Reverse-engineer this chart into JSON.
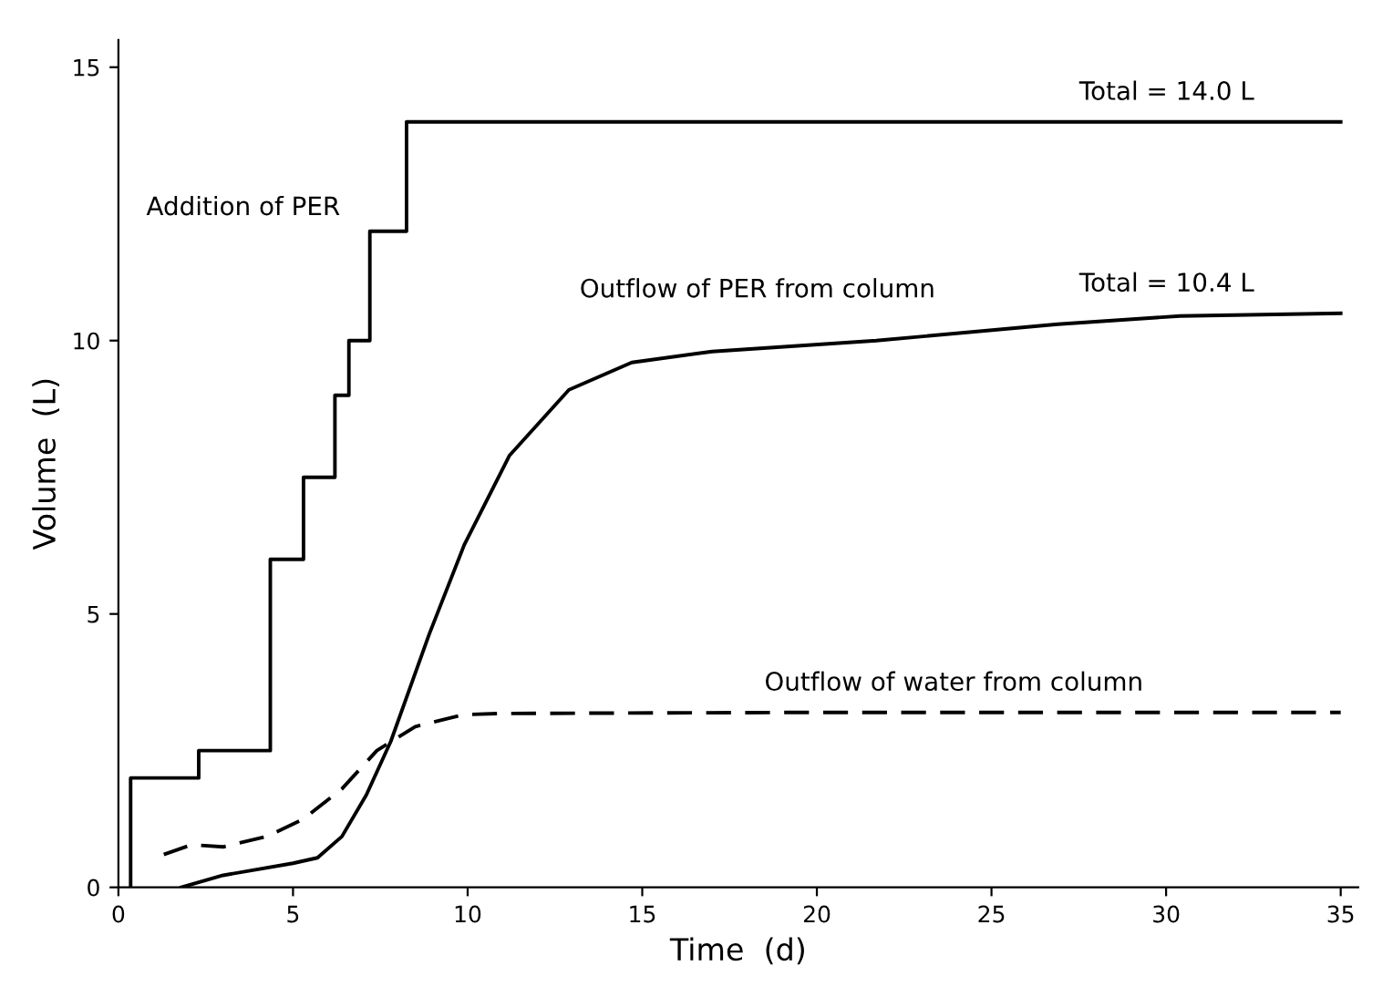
{
  "chart_data": {
    "type": "line",
    "xlabel": "Time  (d)",
    "ylabel": "Volume  (L)",
    "xlim": [
      0,
      35.5
    ],
    "ylim": [
      0,
      15.5
    ],
    "xticks": [
      0,
      5,
      10,
      15,
      20,
      25,
      30,
      35
    ],
    "yticks": [
      0,
      5,
      10,
      15
    ],
    "grid": false,
    "legend": false,
    "marker": "none",
    "series": [
      {
        "type": "step",
        "color": "#000000",
        "line_style": "solid",
        "x": [
          0.35,
          0.35,
          2.3,
          4.35,
          5.3,
          6.2,
          6.6,
          7.2,
          8.25,
          35
        ],
        "values": [
          0,
          2,
          2.5,
          6,
          7.5,
          9,
          10,
          12,
          14,
          14
        ]
      },
      {
        "color": "#000000",
        "line_style": "solid",
        "x": [
          1.8,
          3.0,
          5.0,
          5.7,
          6.4,
          7.1,
          7.8,
          8.9,
          9.9,
          11.2,
          12.9,
          14.7,
          17.0,
          21.7,
          26.9,
          30.4,
          35
        ],
        "values": [
          0,
          0.22,
          0.44,
          0.54,
          0.93,
          1.69,
          2.67,
          4.63,
          6.26,
          7.9,
          9.1,
          9.6,
          9.8,
          10.0,
          10.3,
          10.45,
          10.5
        ]
      },
      {
        "color": "#000000",
        "line_style": "dashed",
        "x": [
          1.3,
          2.1,
          3.0,
          4.25,
          5.3,
          6.4,
          7.4,
          8.5,
          9.9,
          11,
          20,
          35
        ],
        "values": [
          0.6,
          0.78,
          0.74,
          0.93,
          1.25,
          1.8,
          2.5,
          2.94,
          3.16,
          3.18,
          3.2,
          3.2
        ]
      }
    ],
    "annotations": [
      "Addition of PER",
      "Total = 14.0 L",
      "Outflow of PER from column",
      "Total = 10.4 L",
      "Outflow of water from column"
    ]
  }
}
